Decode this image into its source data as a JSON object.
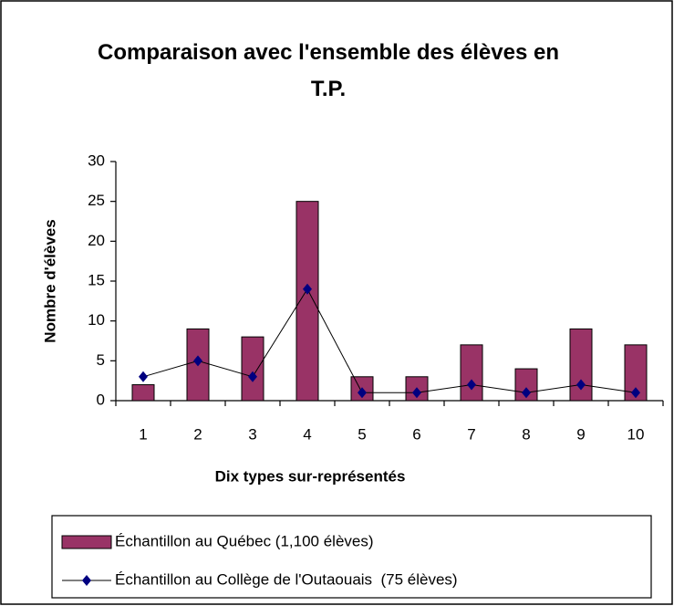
{
  "chart_data": {
    "type": "bar",
    "title": "Comparaison avec l'ensemble des élèves en T.P.",
    "x_label": "Dix types sur-représentés",
    "y_label": "Nombre d'élèves",
    "categories": [
      "1",
      "2",
      "3",
      "4",
      "5",
      "6",
      "7",
      "8",
      "9",
      "10"
    ],
    "series": [
      {
        "name": "Échantillon au Québec (1,100 élèves)",
        "type": "bar",
        "color": "#993366",
        "values": [
          2,
          9,
          8,
          25,
          3,
          3,
          7,
          4,
          9,
          7
        ]
      },
      {
        "name": "Échantillon au Collège de l'Outaouais  (75 élèves)",
        "type": "line",
        "color": "#000080",
        "values": [
          3,
          5,
          3,
          14,
          1,
          1,
          2,
          1,
          2,
          1
        ]
      }
    ],
    "ylim": [
      0,
      30
    ],
    "yticks": [
      0,
      5,
      10,
      15,
      20,
      25,
      30
    ],
    "grid": false,
    "legend": "bottom"
  }
}
